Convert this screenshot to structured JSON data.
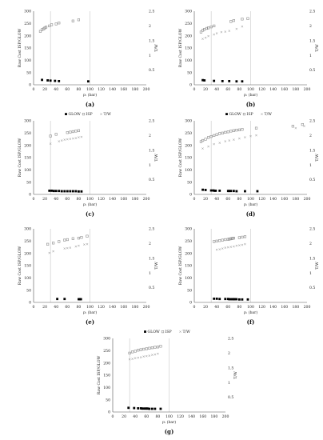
{
  "figure": {
    "panels": [
      {
        "label": "(a)"
      },
      {
        "label": "(b)"
      },
      {
        "label": "(c)"
      },
      {
        "label": "(d)"
      },
      {
        "label": "(e)"
      },
      {
        "label": "(f)"
      },
      {
        "label": "(g)"
      }
    ]
  },
  "colors": {
    "glow": "#000000",
    "isp": "#8c8c8c",
    "tw": "#8c8c8c",
    "axis": "#555555",
    "grid": "#c8c8c8"
  },
  "chart_data": [
    {
      "panel": "(a)",
      "type": "scatter",
      "legend": [],
      "xlabel": "p₁ (bar)",
      "ylabel": "Raw Cost ISP/GLOW",
      "y2label": "T/W",
      "xlim": [
        0,
        200
      ],
      "ylim": [
        0,
        300
      ],
      "y2lim": [
        0,
        2.5
      ],
      "x_ticks": [
        0,
        20,
        40,
        60,
        80,
        100,
        120,
        140,
        160,
        180,
        200
      ],
      "y_ticks": [
        0,
        50,
        100,
        150,
        200,
        250,
        300
      ],
      "y2_ticks": [
        0.5,
        1,
        1.5,
        2,
        2.5
      ],
      "vlines": [
        30,
        100
      ],
      "series": [
        {
          "name": "",
          "marker": "glow",
          "axis": "left",
          "x": [
            15,
            25,
            30,
            38,
            45,
            97
          ],
          "y": [
            20,
            18,
            17,
            16,
            15,
            14
          ]
        },
        {
          "name": "",
          "marker": "isp",
          "axis": "left",
          "x": [
            12,
            15,
            18,
            20,
            22,
            28,
            32,
            40,
            45,
            70,
            80
          ],
          "y": [
            218,
            225,
            228,
            232,
            235,
            240,
            245,
            248,
            252,
            260,
            265
          ]
        },
        {
          "name": "",
          "marker": "tw",
          "axis": "right",
          "x": [],
          "y": []
        }
      ]
    },
    {
      "panel": "(b)",
      "type": "scatter",
      "legend": [],
      "xlabel": "p₁ (bar)",
      "ylabel": "Raw Cost ISP/GLOW",
      "y2label": "T/W",
      "xlim": [
        0,
        200
      ],
      "ylim": [
        0,
        300
      ],
      "y2lim": [
        0,
        2.5
      ],
      "x_ticks": [
        0,
        20,
        40,
        60,
        80,
        100,
        120,
        140,
        160,
        180,
        200
      ],
      "y_ticks": [
        0,
        50,
        100,
        150,
        200,
        250,
        300
      ],
      "y2_ticks": [
        0.5,
        1,
        1.5,
        2,
        2.5
      ],
      "vlines": [
        30,
        100
      ],
      "series": [
        {
          "name": "",
          "marker": "glow",
          "axis": "left",
          "x": [
            15,
            18,
            35,
            50,
            62,
            75,
            85
          ],
          "y": [
            19,
            18,
            16,
            15,
            15,
            14,
            14
          ]
        },
        {
          "name": "",
          "marker": "isp",
          "axis": "left",
          "x": [
            12,
            15,
            18,
            22,
            25,
            30,
            35,
            65,
            70,
            85,
            95
          ],
          "y": [
            215,
            222,
            226,
            230,
            232,
            236,
            240,
            258,
            262,
            268,
            270
          ]
        },
        {
          "name": "",
          "marker": "tw",
          "axis": "right",
          "x": [
            15,
            20,
            25,
            35,
            40,
            48,
            55,
            62,
            75,
            85
          ],
          "y": [
            1.55,
            1.6,
            1.65,
            1.7,
            1.75,
            1.78,
            1.8,
            1.82,
            1.9,
            1.98
          ]
        }
      ]
    },
    {
      "panel": "(c)",
      "type": "scatter",
      "legend": [
        "GLOW",
        "ISP",
        "T/W"
      ],
      "xlabel": "p₁ (bar)",
      "ylabel": "Raw Cost ISP/GLOW",
      "y2label": "T/W",
      "xlim": [
        0,
        200
      ],
      "ylim": [
        0,
        300
      ],
      "y2lim": [
        0,
        2.5
      ],
      "x_ticks": [
        0,
        20,
        40,
        60,
        80,
        100,
        120,
        140,
        160,
        180,
        200
      ],
      "y_ticks": [
        0,
        50,
        100,
        150,
        200,
        250,
        300
      ],
      "y2_ticks": [
        0.5,
        1,
        1.5,
        2,
        2.5
      ],
      "vlines": [
        30,
        100
      ],
      "series": [
        {
          "name": "GLOW",
          "marker": "glow",
          "axis": "left",
          "x": [
            28,
            32,
            36,
            40,
            45,
            50,
            55,
            60,
            65,
            70,
            75,
            80,
            85
          ],
          "y": [
            15,
            15,
            14,
            14,
            14,
            13,
            13,
            13,
            13,
            13,
            13,
            12,
            12
          ]
        },
        {
          "name": "ISP",
          "marker": "isp",
          "axis": "left",
          "x": [
            30,
            40,
            60,
            65,
            70,
            75,
            80
          ],
          "y": [
            238,
            245,
            252,
            254,
            256,
            258,
            260
          ]
        },
        {
          "name": "T/W",
          "marker": "tw",
          "axis": "right",
          "x": [
            30,
            45,
            50,
            55,
            60,
            65,
            70,
            75,
            80,
            85
          ],
          "y": [
            1.72,
            1.8,
            1.83,
            1.85,
            1.87,
            1.88,
            1.9,
            1.91,
            1.93,
            1.95
          ]
        }
      ]
    },
    {
      "panel": "(d)",
      "type": "scatter",
      "legend": [
        "GLOW",
        "ISP",
        "T/W"
      ],
      "xlabel": "p₁ (bar)",
      "ylabel": "Raw Cost ISP/GLOW",
      "y2label": "T/W",
      "xlim": [
        0,
        200
      ],
      "ylim": [
        0,
        300
      ],
      "y2lim": [
        0,
        2.5
      ],
      "x_ticks": [
        0,
        20,
        40,
        60,
        80,
        100,
        120,
        140,
        160,
        180,
        200
      ],
      "y_ticks": [
        0,
        50,
        100,
        150,
        200,
        250,
        300
      ],
      "y2_ticks": [
        0.5,
        1,
        1.5,
        2,
        2.5
      ],
      "vlines": [
        30,
        100
      ],
      "series": [
        {
          "name": "GLOW",
          "marker": "glow",
          "axis": "left",
          "x": [
            15,
            20,
            30,
            34,
            36,
            38,
            45,
            60,
            62,
            65,
            70,
            75,
            90,
            112
          ],
          "y": [
            19,
            18,
            16,
            16,
            15,
            15,
            15,
            14,
            14,
            14,
            14,
            13,
            13,
            13
          ]
        },
        {
          "name": "ISP",
          "marker": "isp",
          "axis": "left",
          "x": [
            12,
            15,
            20,
            25,
            30,
            35,
            40,
            45,
            50,
            55,
            60,
            65,
            70,
            75,
            80,
            85,
            110,
            175,
            192
          ],
          "y": [
            215,
            220,
            225,
            232,
            236,
            240,
            244,
            248,
            250,
            253,
            255,
            258,
            260,
            262,
            263,
            265,
            270,
            278,
            285
          ]
        },
        {
          "name": "T/W",
          "marker": "tw",
          "axis": "right",
          "x": [
            15,
            25,
            35,
            45,
            55,
            62,
            70,
            80,
            90,
            100,
            110,
            180,
            195
          ],
          "y": [
            1.55,
            1.62,
            1.7,
            1.75,
            1.8,
            1.83,
            1.86,
            1.9,
            1.94,
            1.97,
            2.0,
            2.25,
            2.32
          ]
        }
      ]
    },
    {
      "panel": "(e)",
      "type": "scatter",
      "legend": [],
      "xlabel": "p₁ (bar)",
      "ylabel": "Raw Cost ISP/GLOW",
      "y2label": "T/W",
      "xlim": [
        0,
        200
      ],
      "ylim": [
        0,
        300
      ],
      "y2lim": [
        0,
        2.5
      ],
      "x_ticks": [
        0,
        20,
        40,
        60,
        80,
        100,
        120,
        140,
        160,
        180,
        200
      ],
      "y_ticks": [
        0,
        50,
        100,
        150,
        200,
        250,
        300
      ],
      "y2_ticks": [
        0.5,
        1,
        1.5,
        2,
        2.5
      ],
      "vlines": [
        30,
        100
      ],
      "series": [
        {
          "name": "",
          "marker": "glow",
          "axis": "left",
          "x": [
            42,
            55,
            80,
            82,
            84
          ],
          "y": [
            14,
            14,
            13,
            13,
            13
          ]
        },
        {
          "name": "",
          "marker": "isp",
          "axis": "left",
          "x": [
            25,
            35,
            45,
            55,
            60,
            70,
            80,
            85,
            95
          ],
          "y": [
            237,
            242,
            248,
            254,
            256,
            260,
            262,
            265,
            270
          ]
        },
        {
          "name": "",
          "marker": "tw",
          "axis": "right",
          "x": [
            28,
            35,
            55,
            60,
            65,
            75,
            80,
            90,
            95
          ],
          "y": [
            1.68,
            1.73,
            1.82,
            1.84,
            1.86,
            1.9,
            1.92,
            1.96,
            1.98
          ]
        }
      ]
    },
    {
      "panel": "(f)",
      "type": "scatter",
      "legend": [],
      "xlabel": "p₁ (bar)",
      "ylabel": "Raw Cost ISP/GLOW",
      "y2label": "T/W",
      "xlim": [
        0,
        200
      ],
      "ylim": [
        0,
        300
      ],
      "y2lim": [
        0,
        2.5
      ],
      "x_ticks": [
        0,
        20,
        40,
        60,
        80,
        100,
        120,
        140,
        160,
        180,
        200
      ],
      "y_ticks": [
        0,
        50,
        100,
        150,
        200,
        250,
        300
      ],
      "y2_ticks": [
        0.5,
        1,
        1.5,
        2,
        2.5
      ],
      "vlines": [
        30,
        100
      ],
      "series": [
        {
          "name": "",
          "marker": "glow",
          "axis": "left",
          "x": [
            35,
            40,
            45,
            55,
            60,
            62,
            65,
            68,
            70,
            72,
            75,
            80,
            85,
            95
          ],
          "y": [
            15,
            15,
            14,
            14,
            14,
            13,
            13,
            13,
            13,
            13,
            13,
            12,
            12,
            12
          ]
        },
        {
          "name": "",
          "marker": "isp",
          "axis": "left",
          "x": [
            35,
            40,
            45,
            50,
            55,
            60,
            62,
            64,
            66,
            68,
            70,
            80,
            85,
            90
          ],
          "y": [
            248,
            250,
            252,
            254,
            256,
            257,
            258,
            259,
            260,
            261,
            262,
            264,
            266,
            268
          ]
        },
        {
          "name": "",
          "marker": "tw",
          "axis": "right",
          "x": [
            40,
            45,
            50,
            55,
            60,
            65,
            70,
            75,
            80,
            85,
            90
          ],
          "y": [
            1.78,
            1.8,
            1.83,
            1.85,
            1.87,
            1.88,
            1.9,
            1.92,
            1.93,
            1.95,
            1.97
          ]
        }
      ]
    },
    {
      "panel": "(g)",
      "type": "scatter",
      "legend": [
        "GLOW",
        "ISP",
        "T/W"
      ],
      "xlabel": "p₁ (bar)",
      "ylabel": "Raw Cost ISP/GLOW",
      "y2label": "T/W",
      "xlim": [
        0,
        200
      ],
      "ylim": [
        0,
        300
      ],
      "y2lim": [
        0,
        2.5
      ],
      "x_ticks": [
        0,
        20,
        40,
        60,
        80,
        100,
        120,
        140,
        160,
        180,
        200
      ],
      "y_ticks": [
        0,
        50,
        100,
        150,
        200,
        250,
        300
      ],
      "y2_ticks": [
        0.5,
        1,
        1.5,
        2,
        2.5
      ],
      "vlines": [
        30,
        100
      ],
      "series": [
        {
          "name": "GLOW",
          "marker": "glow",
          "axis": "left",
          "x": [
            28,
            38,
            45,
            50,
            52,
            55,
            58,
            60,
            62,
            65,
            70,
            75,
            85
          ],
          "y": [
            17,
            16,
            15,
            15,
            14,
            14,
            14,
            14,
            14,
            13,
            13,
            13,
            13
          ]
        },
        {
          "name": "ISP",
          "marker": "isp",
          "axis": "left",
          "x": [
            30,
            35,
            40,
            45,
            50,
            55,
            60,
            65,
            70,
            75,
            80,
            85
          ],
          "y": [
            240,
            245,
            248,
            252,
            254,
            256,
            258,
            260,
            262,
            264,
            265,
            268
          ]
        },
        {
          "name": "T/W",
          "marker": "tw",
          "axis": "right",
          "x": [
            30,
            35,
            40,
            45,
            50,
            55,
            60,
            65,
            70,
            75,
            80
          ],
          "y": [
            1.78,
            1.8,
            1.82,
            1.84,
            1.86,
            1.88,
            1.9,
            1.91,
            1.93,
            1.95,
            1.97
          ]
        }
      ]
    }
  ]
}
